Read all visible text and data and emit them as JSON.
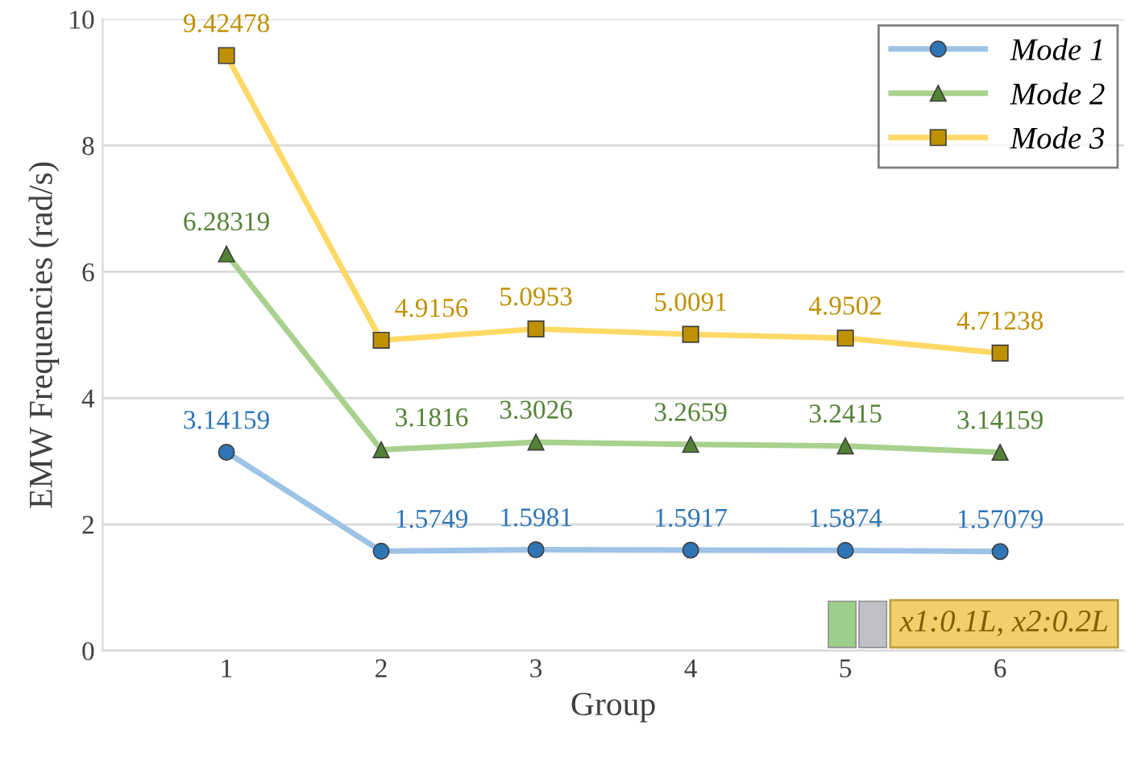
{
  "chart_data": {
    "type": "line",
    "xlabel": "Group",
    "ylabel": "EMW Frequencies (rad/s)",
    "categories": [
      "1",
      "2",
      "3",
      "4",
      "5",
      "6"
    ],
    "series": [
      {
        "name": "Mode 1",
        "color": "#9dc3e6",
        "marker": "circle",
        "values": [
          3.14159,
          1.5749,
          1.5981,
          1.5917,
          1.5874,
          1.57079
        ]
      },
      {
        "name": "Mode 2",
        "color": "#a9d18e",
        "marker": "triangle",
        "values": [
          6.28319,
          3.1816,
          3.3026,
          3.2659,
          3.2415,
          3.14159
        ]
      },
      {
        "name": "Mode 3",
        "color": "#ffd966",
        "marker": "square",
        "values": [
          9.42478,
          4.9156,
          5.0953,
          5.0091,
          4.9502,
          4.71238
        ]
      }
    ],
    "ylim": [
      0,
      10
    ],
    "yticks": [
      0,
      2,
      4,
      6,
      8,
      10
    ],
    "grid": "y",
    "legend": "top right",
    "data_labels": true,
    "line_style": "solid",
    "annotations": [
      "x1:0.1L, x2:0.2L"
    ]
  }
}
